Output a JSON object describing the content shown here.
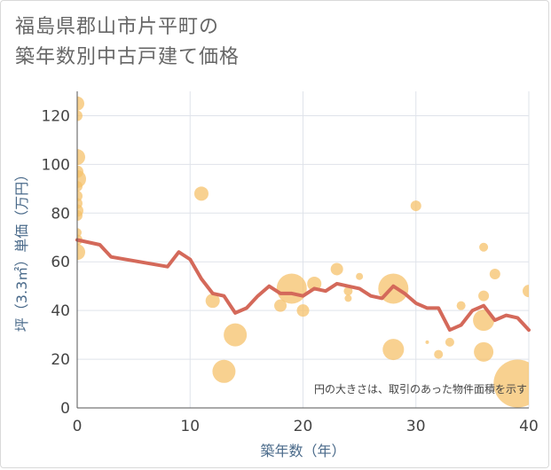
{
  "title_lines": [
    "福島県郡山市片平町の",
    "築年数別中古戸建て価格"
  ],
  "chart_data": {
    "type": "scatter",
    "xlabel": "築年数（年）",
    "ylabel": "坪（3.3㎡）単価（万円）",
    "xlim": [
      0,
      40
    ],
    "ylim": [
      0,
      130
    ],
    "x_ticks": [
      0,
      10,
      20,
      30,
      40
    ],
    "y_ticks": [
      0,
      20,
      40,
      60,
      80,
      100,
      120
    ],
    "grid": true,
    "annotation": "円の大きさは、取引のあった物件面積を示す",
    "colors": {
      "bubble": "#f5c26b",
      "line": "#d4695a",
      "grid": "#dfe3ea",
      "axis": "#555555"
    },
    "bubbles": [
      {
        "x": 0,
        "y": 125,
        "size": 8
      },
      {
        "x": 0,
        "y": 120,
        "size": 6
      },
      {
        "x": 0,
        "y": 103,
        "size": 9
      },
      {
        "x": 0,
        "y": 97,
        "size": 7
      },
      {
        "x": 0,
        "y": 94,
        "size": 10
      },
      {
        "x": 0,
        "y": 91,
        "size": 6
      },
      {
        "x": 0,
        "y": 87,
        "size": 6
      },
      {
        "x": 0,
        "y": 84,
        "size": 6
      },
      {
        "x": 0,
        "y": 81,
        "size": 7
      },
      {
        "x": 0,
        "y": 79,
        "size": 6
      },
      {
        "x": 0,
        "y": 72,
        "size": 5
      },
      {
        "x": 0,
        "y": 69,
        "size": 6
      },
      {
        "x": 0,
        "y": 64,
        "size": 9
      },
      {
        "x": 11,
        "y": 88,
        "size": 8
      },
      {
        "x": 12,
        "y": 44,
        "size": 8
      },
      {
        "x": 13,
        "y": 15,
        "size": 13
      },
      {
        "x": 14,
        "y": 30,
        "size": 13
      },
      {
        "x": 18,
        "y": 42,
        "size": 7
      },
      {
        "x": 19,
        "y": 49,
        "size": 17
      },
      {
        "x": 20,
        "y": 40,
        "size": 7
      },
      {
        "x": 21,
        "y": 51,
        "size": 8
      },
      {
        "x": 23,
        "y": 57,
        "size": 7
      },
      {
        "x": 24,
        "y": 45,
        "size": 4
      },
      {
        "x": 24,
        "y": 48,
        "size": 5
      },
      {
        "x": 25,
        "y": 54,
        "size": 4
      },
      {
        "x": 28,
        "y": 49,
        "size": 17
      },
      {
        "x": 28,
        "y": 24,
        "size": 12
      },
      {
        "x": 30,
        "y": 83,
        "size": 6
      },
      {
        "x": 31,
        "y": 27,
        "size": 2
      },
      {
        "x": 32,
        "y": 22,
        "size": 5
      },
      {
        "x": 33,
        "y": 27,
        "size": 5
      },
      {
        "x": 34,
        "y": 42,
        "size": 5
      },
      {
        "x": 36,
        "y": 66,
        "size": 5
      },
      {
        "x": 36,
        "y": 46,
        "size": 6
      },
      {
        "x": 36,
        "y": 36,
        "size": 12
      },
      {
        "x": 36,
        "y": 23,
        "size": 11
      },
      {
        "x": 37,
        "y": 55,
        "size": 6
      },
      {
        "x": 39,
        "y": 10,
        "size": 27
      },
      {
        "x": 40,
        "y": 48,
        "size": 7
      }
    ],
    "trend": {
      "x": [
        0,
        2,
        3,
        8,
        9,
        10,
        11,
        12,
        13,
        14,
        15,
        16,
        17,
        18,
        19,
        20,
        21,
        22,
        23,
        24,
        25,
        26,
        27,
        28,
        29,
        30,
        31,
        32,
        33,
        34,
        35,
        36,
        37,
        38,
        39,
        40
      ],
      "y": [
        69,
        67,
        62,
        58,
        64,
        61,
        53,
        47,
        46,
        39,
        41,
        46,
        50,
        47,
        47,
        46,
        49,
        48,
        51,
        50,
        49,
        46,
        45,
        50,
        47,
        43,
        41,
        41,
        32,
        34,
        40,
        42,
        36,
        38,
        37,
        32
      ]
    }
  }
}
